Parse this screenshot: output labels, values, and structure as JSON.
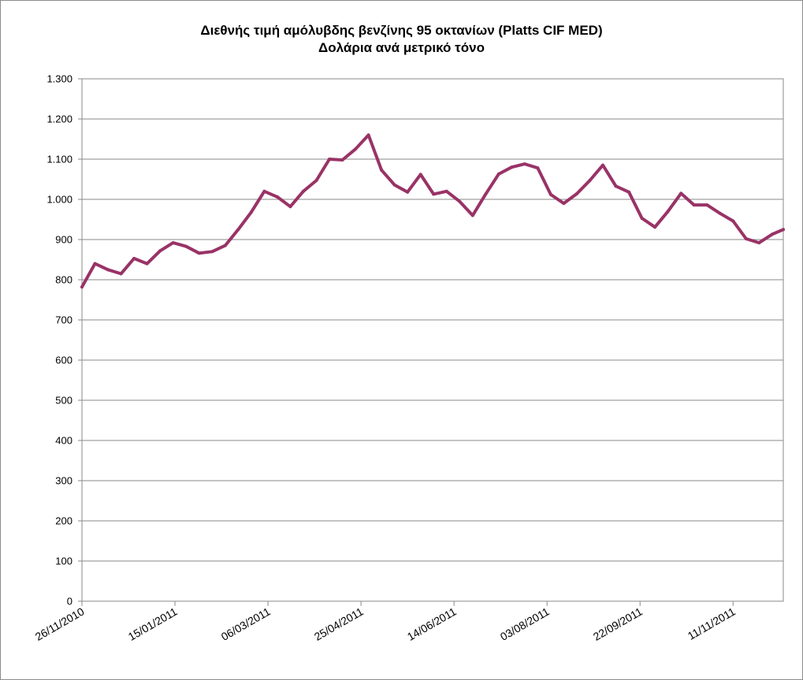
{
  "chart_data": {
    "type": "line",
    "title": "Διεθνής τιμή αμόλυβδης βενζίνης 95 οκτανίων (Platts CIF MED)",
    "subtitle": "Δολάρια ανά μετρικό τόνο",
    "xlabel": "",
    "ylabel": "",
    "ylim": [
      0,
      1300
    ],
    "yticks": [
      0,
      100,
      200,
      300,
      400,
      500,
      600,
      700,
      800,
      900,
      1000,
      1100,
      1200,
      1300
    ],
    "ytick_labels": [
      "0",
      "100",
      "200",
      "300",
      "400",
      "500",
      "600",
      "700",
      "800",
      "900",
      "1.000",
      "1.100",
      "1.200",
      "1.300"
    ],
    "x_start": "26/11/2010",
    "x_end": "08/12/2011",
    "xtick_labels": [
      "26/11/2010",
      "15/01/2011",
      "06/03/2011",
      "25/04/2011",
      "14/06/2011",
      "03/08/2011",
      "22/09/2011",
      "11/11/2011"
    ],
    "grid": "horizontal",
    "legend": "none",
    "line_color": "#993366",
    "series": [
      {
        "x": [
          "26/11/2010",
          "03/12/2010",
          "10/12/2010",
          "17/12/2010",
          "24/12/2010",
          "31/12/2010",
          "07/01/2011",
          "14/01/2011",
          "21/01/2011",
          "28/01/2011",
          "04/02/2011",
          "11/02/2011",
          "18/02/2011",
          "25/02/2011",
          "04/03/2011",
          "11/03/2011",
          "18/03/2011",
          "25/03/2011",
          "01/04/2011",
          "08/04/2011",
          "15/04/2011",
          "22/04/2011",
          "29/04/2011",
          "06/05/2011",
          "13/05/2011",
          "20/05/2011",
          "27/05/2011",
          "03/06/2011",
          "10/06/2011",
          "17/06/2011",
          "24/06/2011",
          "01/07/2011",
          "08/07/2011",
          "15/07/2011",
          "22/07/2011",
          "29/07/2011",
          "05/08/2011",
          "12/08/2011",
          "19/08/2011",
          "26/08/2011",
          "02/09/2011",
          "09/09/2011",
          "16/09/2011",
          "23/09/2011",
          "30/09/2011",
          "07/10/2011",
          "14/10/2011",
          "21/10/2011",
          "28/10/2011",
          "04/11/2011",
          "11/11/2011",
          "18/11/2011",
          "25/11/2011",
          "02/12/2011",
          "08/12/2011"
        ],
        "values": [
          782,
          840,
          825,
          815,
          853,
          840,
          872,
          892,
          883,
          866,
          870,
          885,
          925,
          968,
          1020,
          1006,
          982,
          1020,
          1047,
          1100,
          1098,
          1125,
          1160,
          1073,
          1036,
          1018,
          1062,
          1013,
          1020,
          995,
          960,
          1013,
          1063,
          1080,
          1088,
          1078,
          1012,
          990,
          1014,
          1047,
          1085,
          1033,
          1018,
          953,
          931,
          970,
          1015,
          986,
          986,
          965,
          946,
          902,
          892,
          913,
          925
        ]
      }
    ]
  }
}
